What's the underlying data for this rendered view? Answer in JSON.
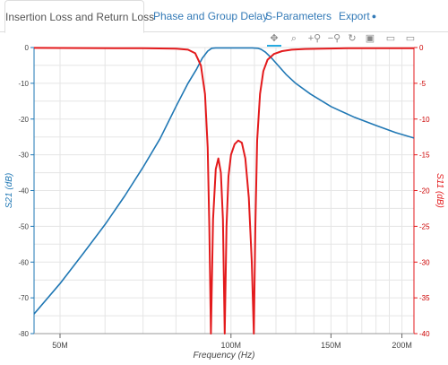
{
  "tabs": [
    {
      "label": "Insertion Loss and Return Loss"
    },
    {
      "label": "Phase and Group Delay"
    },
    {
      "label": "S-Parameters"
    },
    {
      "label": "Export"
    }
  ],
  "toolbar": {
    "icons": [
      "pan-icon",
      "box-zoom-icon",
      "zoom-in-icon",
      "zoom-out-icon",
      "reset-icon",
      "save-icon",
      "hover-icon",
      "hover-icon"
    ]
  },
  "colors": {
    "s21": "#1f77b4",
    "s11": "#e31a1c",
    "grid": "#e5e5e5",
    "axis_left": "#1f77b4",
    "axis_right": "#e31a1c"
  },
  "chart_data": {
    "type": "line",
    "xlabel": "Frequency (Hz)",
    "ylabel": "S21 (dB)",
    "ylabel_right": "S11 (dB)",
    "x_scale": "log",
    "xlim": [
      45000000,
      210000000
    ],
    "ylim": [
      -80,
      0
    ],
    "ylim_right": [
      -40,
      0
    ],
    "x_ticks": [
      50000000,
      100000000,
      150000000,
      200000000
    ],
    "x_tick_labels": [
      "50M",
      "100M",
      "150M",
      "200M"
    ],
    "y_ticks": [
      0,
      -10,
      -20,
      -30,
      -40,
      -50,
      -60,
      -70,
      -80
    ],
    "y_tick_labels": [
      "0",
      "-10",
      "-20",
      "-30",
      "-40",
      "-50",
      "-60",
      "-70",
      "-80"
    ],
    "y_ticks_right": [
      0,
      -5,
      -10,
      -15,
      -20,
      -25,
      -30,
      -35,
      -40
    ],
    "y_tick_labels_right": [
      "0",
      "-5",
      "-10",
      "-15",
      "-20",
      "-25",
      "-30",
      "-35",
      "-40"
    ],
    "grid": true,
    "series": [
      {
        "name": "S21 (dB)",
        "axis": "left",
        "x": [
          45000000,
          50000000,
          55000000,
          60000000,
          65000000,
          70000000,
          75000000,
          80000000,
          84000000,
          87000000,
          89000000,
          91000000,
          92500000,
          94000000,
          96000000,
          98000000,
          100000000,
          103000000,
          106000000,
          109000000,
          111500000,
          113000000,
          115000000,
          118000000,
          121000000,
          125000000,
          130000000,
          138000000,
          150000000,
          165000000,
          180000000,
          195000000,
          210000000
        ],
        "y": [
          -74.5,
          -66,
          -57.5,
          -49.5,
          -41.5,
          -33.5,
          -25.5,
          -16.5,
          -10,
          -6,
          -3,
          -1,
          -0.2,
          -0.1,
          -0.1,
          -0.1,
          -0.1,
          -0.1,
          -0.1,
          -0.1,
          -0.2,
          -0.5,
          -1.3,
          -3,
          -5,
          -7.5,
          -10,
          -13,
          -16.5,
          -19.5,
          -21.8,
          -23.8,
          -25.3
        ]
      },
      {
        "name": "S11 (dB)",
        "axis": "right",
        "x": [
          45000000,
          70000000,
          80000000,
          84000000,
          86500000,
          88500000,
          90000000,
          91000000,
          91600000,
          92200000,
          93000000,
          94000000,
          95000000,
          96000000,
          96800000,
          97500000,
          98200000,
          99000000,
          100000000,
          101500000,
          103000000,
          104500000,
          106000000,
          107500000,
          108800000,
          109700000,
          110400000,
          111200000,
          112500000,
          114000000,
          116000000,
          119000000,
          123000000,
          128000000,
          135000000,
          145000000,
          160000000,
          180000000,
          210000000
        ],
        "y": [
          -0.05,
          -0.1,
          -0.15,
          -0.3,
          -0.8,
          -2.5,
          -6.5,
          -14,
          -25,
          -40,
          -24,
          -17,
          -15.5,
          -17.5,
          -24,
          -40,
          -25,
          -18,
          -15,
          -13.5,
          -13,
          -13.3,
          -15.5,
          -21,
          -30,
          -40,
          -25,
          -13,
          -6.5,
          -3.3,
          -1.7,
          -0.9,
          -0.5,
          -0.3,
          -0.2,
          -0.15,
          -0.1,
          -0.1,
          -0.1
        ]
      }
    ]
  }
}
